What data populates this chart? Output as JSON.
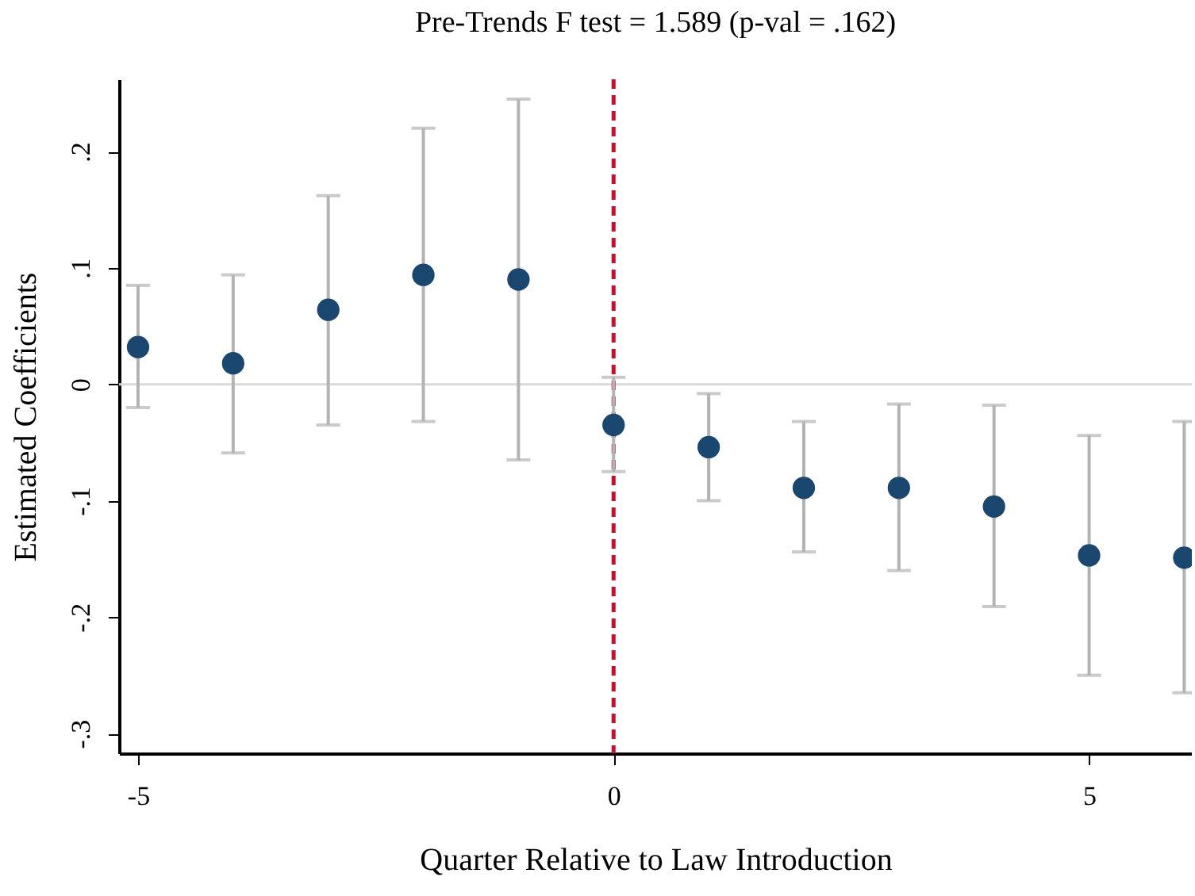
{
  "chart_data": {
    "type": "scatter",
    "title": "Pre-Trends F test = 1.589 (p-val = .162)",
    "xlabel": "Quarter Relative to Law Introduction",
    "ylabel": "Estimated Coefficients",
    "x": [
      -5,
      -4,
      -3,
      -2,
      -1,
      0,
      1,
      2,
      3,
      4,
      5,
      6
    ],
    "series": [
      {
        "color": "#1a476f",
        "values": [
          0.032,
          0.018,
          0.064,
          0.094,
          0.09,
          -0.035,
          -0.054,
          -0.089,
          -0.089,
          -0.105,
          -0.147,
          -0.149
        ],
        "errors": [
          [
            -0.02,
            0.085
          ],
          [
            -0.059,
            0.094
          ],
          [
            -0.035,
            0.162
          ],
          [
            -0.032,
            0.22
          ],
          [
            -0.065,
            0.245
          ],
          [
            -0.075,
            0.006
          ],
          [
            -0.1,
            -0.008
          ],
          [
            -0.144,
            -0.032
          ],
          [
            -0.16,
            -0.017
          ],
          [
            -0.191,
            -0.018
          ],
          [
            -0.25,
            -0.044
          ],
          [
            -0.265,
            -0.032
          ]
        ]
      }
    ],
    "xlim": [
      -5.2,
      6.08
    ],
    "ylim": [
      -0.317,
      0.262
    ],
    "xticks": [
      -5,
      0,
      5
    ],
    "yticks": [
      {
        "value": -0.3,
        "label": "-.3"
      },
      {
        "value": -0.2,
        "label": "-.2"
      },
      {
        "value": -0.1,
        "label": "-.1"
      },
      0,
      {
        "value": 0.1,
        "label": ".1"
      },
      {
        "value": 0.2,
        "label": ".2"
      }
    ],
    "ref_lines": [
      {
        "axis": "y",
        "value": 0,
        "color": "#d9d9d9",
        "line_style": "solid"
      },
      {
        "axis": "x",
        "value": 0,
        "color": "#c8102e",
        "line_style": "dashed"
      }
    ],
    "grid": false,
    "marker": "circle"
  }
}
